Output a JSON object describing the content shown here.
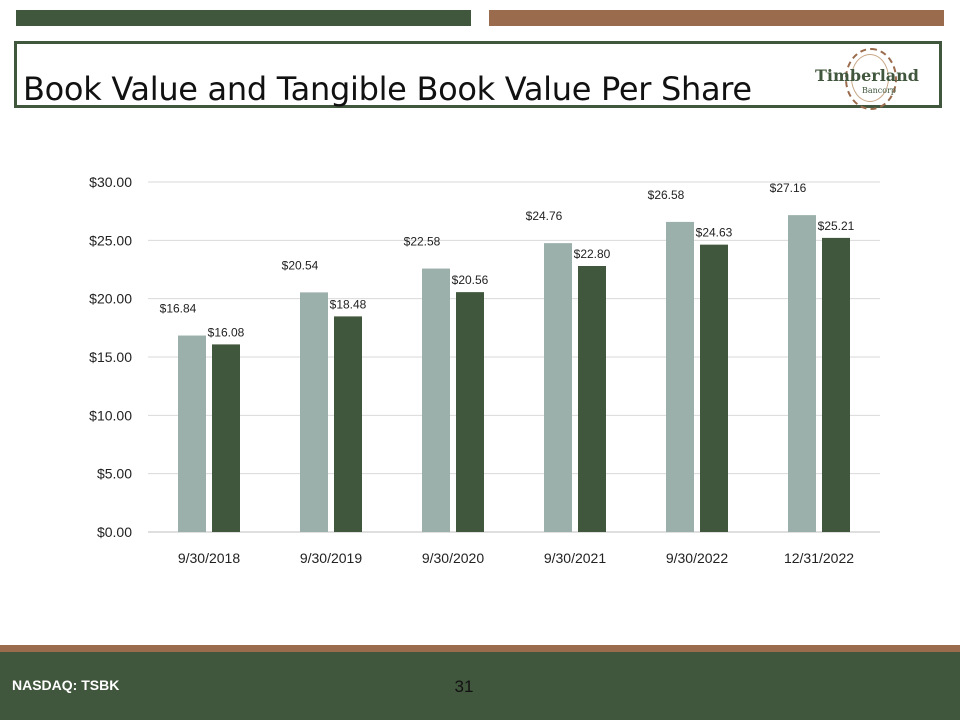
{
  "slide": {
    "title": "Book Value and Tangible Book Value Per Share",
    "logo": {
      "name": "Timberland",
      "sub": "Bancorp"
    },
    "footer": {
      "ticker": "NASDAQ: TSBK",
      "page_number": "31"
    }
  },
  "colors": {
    "dark_green": "#41573d",
    "brown": "#9a6c4d",
    "light_series": "#9bb0aa",
    "dark_series": "#41573d"
  },
  "chart_data": {
    "type": "bar",
    "title": "",
    "xlabel": "",
    "ylabel": "",
    "categories": [
      "9/30/2018",
      "9/30/2019",
      "9/30/2020",
      "9/30/2021",
      "9/30/2022",
      "12/31/2022"
    ],
    "series": [
      {
        "values": [
          16.84,
          20.54,
          22.58,
          24.76,
          26.58,
          27.16
        ],
        "labels": [
          "$16.84",
          "$20.54",
          "$22.58",
          "$24.76",
          "$26.58",
          "$27.16"
        ],
        "color": "#9bb0aa"
      },
      {
        "values": [
          16.08,
          18.48,
          20.56,
          22.8,
          24.63,
          25.21
        ],
        "labels": [
          "$16.08",
          "$18.48",
          "$20.56",
          "$22.80",
          "$24.63",
          "$25.21"
        ],
        "color": "#41573d"
      }
    ],
    "ylim": [
      0,
      30
    ],
    "yticks": [
      0,
      5,
      10,
      15,
      20,
      25,
      30
    ],
    "ytick_labels": [
      "$0.00",
      "$5.00",
      "$10.00",
      "$15.00",
      "$20.00",
      "$25.00",
      "$30.00"
    ],
    "grid": true,
    "legend": "none"
  }
}
